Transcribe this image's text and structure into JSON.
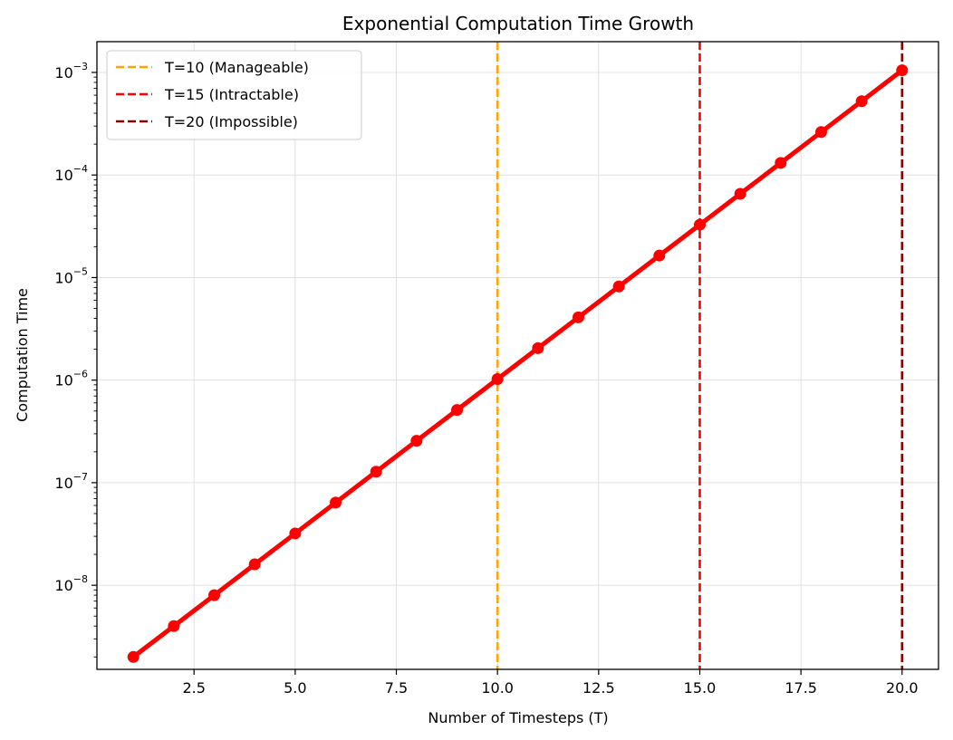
{
  "chart_data": {
    "type": "line",
    "title": "Exponential Computation Time Growth",
    "xlabel": "Number of Timesteps (T)",
    "ylabel": "Computation Time",
    "xlim": [
      0.1,
      20.9
    ],
    "ylim_log10": [
      -8.82,
      -2.7
    ],
    "yscale": "log",
    "grid": true,
    "legend_position": "top-left",
    "x_ticks": [
      2.5,
      5.0,
      7.5,
      10.0,
      12.5,
      15.0,
      17.5,
      20.0
    ],
    "x_tick_labels": [
      "2.5",
      "5.0",
      "7.5",
      "10.0",
      "12.5",
      "15.0",
      "17.5",
      "20.0"
    ],
    "y_ticks": [
      {
        "exp": -8,
        "base": "10",
        "power": "−8"
      },
      {
        "exp": -7,
        "base": "10",
        "power": "−7"
      },
      {
        "exp": -6,
        "base": "10",
        "power": "−6"
      },
      {
        "exp": -5,
        "base": "10",
        "power": "−5"
      },
      {
        "exp": -4,
        "base": "10",
        "power": "−4"
      },
      {
        "exp": -3,
        "base": "10",
        "power": "−3"
      }
    ],
    "series": [
      {
        "color": "#ff0000",
        "x": [
          1,
          2,
          3,
          4,
          5,
          6,
          7,
          8,
          9,
          10,
          11,
          12,
          13,
          14,
          15,
          16,
          17,
          18,
          19,
          20
        ],
        "y": [
          2e-09,
          4e-09,
          8e-09,
          1.6e-08,
          3.2e-08,
          6.4e-08,
          1.28e-07,
          2.56e-07,
          5.12e-07,
          1.024e-06,
          2.048e-06,
          4.096e-06,
          8.192e-06,
          1.6384e-05,
          3.2768e-05,
          6.5536e-05,
          0.000131072,
          0.000262144,
          0.000524288,
          0.001048576
        ]
      }
    ],
    "vlines": [
      {
        "x": 10,
        "label": "T=10 (Manageable)",
        "color": "#ffa500"
      },
      {
        "x": 15,
        "label": "T=15 (Intractable)",
        "color": "#ff0000"
      },
      {
        "x": 20,
        "label": "T=20 (Impossible)",
        "color": "#8b0000"
      }
    ]
  }
}
